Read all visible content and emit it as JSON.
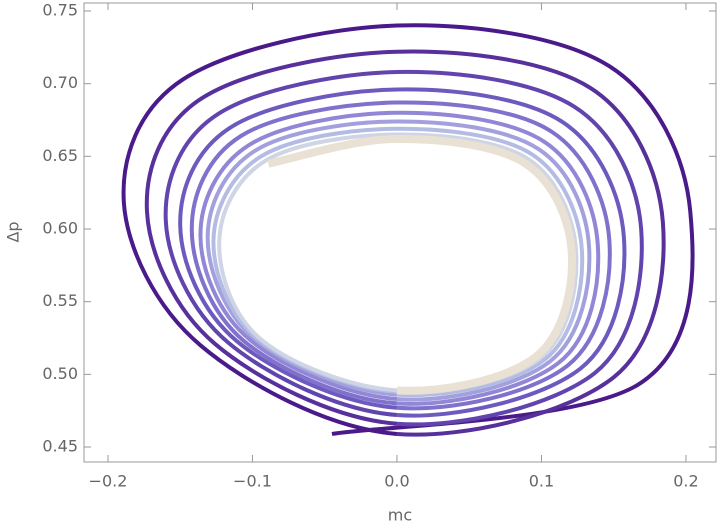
{
  "chart_data": {
    "type": "parametric_line",
    "x_label": "mc",
    "y_label": "Δp",
    "xlim": [
      -0.2166,
      0.2208
    ],
    "ylim": [
      0.4397,
      0.7555
    ],
    "xticks": [
      {
        "value": -0.2,
        "label": "−0.2"
      },
      {
        "value": -0.1,
        "label": "−0.1"
      },
      {
        "value": 0,
        "label": "0.0"
      },
      0.1,
      0.2
    ],
    "yticks": [
      0.45,
      {
        "value": 0.5,
        "label": "0.50"
      },
      0.55,
      {
        "value": 0.6,
        "label": "0.60"
      },
      0.65,
      {
        "value": 0.7,
        "label": "0.70"
      },
      0.75
    ],
    "series": [
      {
        "color": "#4a1a8a",
        "x": [
          -0.045,
          0.167,
          0.203,
          0.147,
          0,
          -0.148,
          -0.189,
          -0.136,
          0
        ],
        "values": [
          0.459,
          0.493,
          0.612,
          0.712,
          0.74,
          0.703,
          0.618,
          0.52,
          0.459
        ]
      },
      {
        "color": "#57309c",
        "x": [
          0,
          0.15,
          0.184,
          0.134,
          0,
          -0.135,
          -0.173,
          -0.126,
          0
        ],
        "values": [
          0.459,
          0.498,
          0.605,
          0.697,
          0.722,
          0.69,
          0.612,
          0.521,
          0.466
        ]
      },
      {
        "color": "#6144ad",
        "x": [
          0,
          0.137,
          0.169,
          0.123,
          0,
          -0.124,
          -0.16,
          -0.117,
          0
        ],
        "values": [
          0.466,
          0.501,
          0.6,
          0.684,
          0.708,
          0.679,
          0.606,
          0.522,
          0.472
        ]
      },
      {
        "color": "#6e5abf",
        "x": [
          0,
          0.127,
          0.157,
          0.114,
          0,
          -0.115,
          -0.15,
          -0.111,
          0
        ],
        "values": [
          0.472,
          0.504,
          0.595,
          0.674,
          0.696,
          0.67,
          0.602,
          0.523,
          0.477
        ]
      },
      {
        "color": "#7f71cc",
        "x": [
          0,
          0.118,
          0.147,
          0.107,
          0,
          -0.108,
          -0.142,
          -0.106,
          0
        ],
        "values": [
          0.477,
          0.506,
          0.592,
          0.667,
          0.687,
          0.664,
          0.599,
          0.523,
          0.48
        ]
      },
      {
        "color": "#9187d6",
        "x": [
          0,
          0.112,
          0.139,
          0.102,
          0,
          -0.102,
          -0.136,
          -0.102,
          0
        ],
        "values": [
          0.48,
          0.508,
          0.589,
          0.66,
          0.68,
          0.658,
          0.596,
          0.524,
          0.483
        ]
      },
      {
        "color": "#a3a0de",
        "x": [
          0,
          0.106,
          0.133,
          0.098,
          0,
          -0.098,
          -0.131,
          -0.098,
          0
        ],
        "values": [
          0.483,
          0.509,
          0.587,
          0.655,
          0.674,
          0.654,
          0.594,
          0.524,
          0.486
        ]
      },
      {
        "color": "#b4bce4",
        "x": [
          0,
          0.102,
          0.128,
          0.094,
          0,
          -0.094,
          -0.127,
          -0.096,
          0
        ],
        "values": [
          0.486,
          0.51,
          0.585,
          0.651,
          0.669,
          0.65,
          0.592,
          0.524,
          0.488
        ]
      },
      {
        "color": "#cfd5e4",
        "x": [
          0,
          0.099,
          0.124,
          0.091,
          0,
          -0.091,
          -0.123,
          -0.094,
          0
        ],
        "values": [
          0.488,
          0.511,
          0.584,
          0.648,
          0.665,
          0.647,
          0.591,
          0.524,
          0.489
        ]
      },
      {
        "color": "#e9e1d3",
        "x": [
          0,
          0.096,
          0.121,
          0.089,
          0,
          -0.089
        ],
        "values": [
          0.489,
          0.512,
          0.583,
          0.645,
          0.662,
          0.645
        ]
      }
    ]
  }
}
